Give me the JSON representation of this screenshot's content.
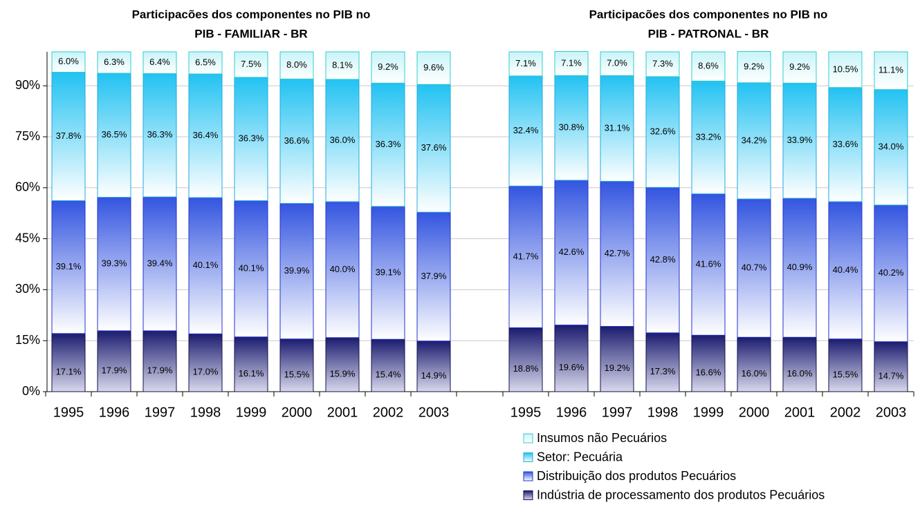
{
  "chart_data": [
    {
      "type": "bar",
      "stacked": true,
      "title": "Participacões dos componentes no PIB no\nPIB - FAMILIAR - BR",
      "categories": [
        "1995",
        "1996",
        "1997",
        "1998",
        "1999",
        "2000",
        "2001",
        "2002",
        "2003"
      ],
      "ylim": [
        0,
        100
      ],
      "yticks": [
        {
          "value": 0,
          "label": "0%"
        },
        {
          "value": 15,
          "label": "15%"
        },
        {
          "value": 30,
          "label": "30%"
        },
        {
          "value": 45,
          "label": "45%"
        },
        {
          "value": 60,
          "label": "60%"
        },
        {
          "value": 75,
          "label": "75%"
        },
        {
          "value": 90,
          "label": "90%"
        }
      ],
      "grid": true,
      "series": [
        {
          "name": "Indústria de processamento dos produtos Pecuários",
          "color": "#1c1c70",
          "values": [
            17.1,
            17.9,
            17.9,
            17.0,
            16.1,
            15.5,
            15.9,
            15.4,
            14.9
          ],
          "value_labels": [
            "17.1%",
            "17.9%",
            "17.9%",
            "17.0%",
            "16.1%",
            "15.5%",
            "15.9%",
            "15.4%",
            "14.9%"
          ]
        },
        {
          "name": "Distribuição dos produtos Pecuários",
          "color": "#3355e0",
          "values": [
            39.1,
            39.3,
            39.4,
            40.1,
            40.1,
            39.9,
            40.0,
            39.1,
            37.9
          ],
          "value_labels": [
            "39.1%",
            "39.3%",
            "39.4%",
            "40.1%",
            "40.1%",
            "39.9%",
            "40.0%",
            "39.1%",
            "37.9%"
          ]
        },
        {
          "name": "Setor: Pecuária",
          "color": "#22c2f2",
          "values": [
            37.8,
            36.5,
            36.3,
            36.4,
            36.3,
            36.6,
            36.0,
            36.3,
            37.6
          ],
          "value_labels": [
            "37.8%",
            "36.5%",
            "36.3%",
            "36.4%",
            "36.3%",
            "36.6%",
            "36.0%",
            "36.3%",
            "37.6%"
          ]
        },
        {
          "name": "Insumos não Pecuários",
          "color": "#c8f4f8",
          "values": [
            6.0,
            6.3,
            6.4,
            6.5,
            7.5,
            8.0,
            8.1,
            9.2,
            9.6
          ],
          "value_labels": [
            "6.0%",
            "6.3%",
            "6.4%",
            "6.5%",
            "7.5%",
            "8.0%",
            "8.1%",
            "9.2%",
            "9.6%"
          ]
        }
      ]
    },
    {
      "type": "bar",
      "stacked": true,
      "title": "Participacões dos componentes no PIB no\nPIB - PATRONAL - BR",
      "categories": [
        "1995",
        "1996",
        "1997",
        "1998",
        "1999",
        "2000",
        "2001",
        "2002",
        "2003"
      ],
      "ylim": [
        0,
        100
      ],
      "series": [
        {
          "values": [
            18.8,
            19.6,
            19.2,
            17.3,
            16.6,
            16.0,
            16.0,
            15.5,
            14.7
          ],
          "value_labels": [
            "18.8%",
            "19.6%",
            "19.2%",
            "17.3%",
            "16.6%",
            "16.0%",
            "16.0%",
            "15.5%",
            "14.7%"
          ]
        },
        {
          "values": [
            41.7,
            42.6,
            42.7,
            42.8,
            41.6,
            40.7,
            40.9,
            40.4,
            40.2
          ],
          "value_labels": [
            "41.7%",
            "42.6%",
            "42.7%",
            "42.8%",
            "41.6%",
            "40.7%",
            "40.9%",
            "40.4%",
            "40.2%"
          ]
        },
        {
          "values": [
            32.4,
            30.8,
            31.1,
            32.6,
            33.2,
            34.2,
            33.9,
            33.6,
            34.0
          ],
          "value_labels": [
            "32.4%",
            "30.8%",
            "31.1%",
            "32.6%",
            "33.2%",
            "34.2%",
            "33.9%",
            "33.6%",
            "34.0%"
          ]
        },
        {
          "values": [
            7.1,
            7.1,
            7.0,
            7.3,
            8.6,
            9.2,
            9.2,
            10.5,
            11.1
          ],
          "value_labels": [
            "7.1%",
            "7.1%",
            "7.0%",
            "7.3%",
            "8.6%",
            "9.2%",
            "9.2%",
            "10.5%",
            "11.1%"
          ]
        }
      ]
    }
  ]
}
